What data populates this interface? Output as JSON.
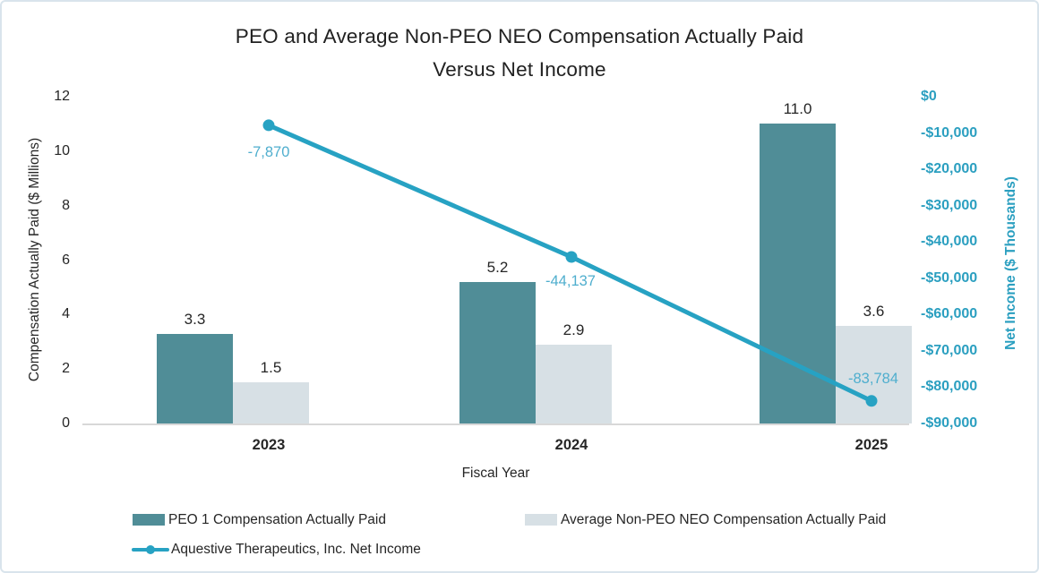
{
  "colors": {
    "peo_bar": "#508D97",
    "non_peo_bar": "#D7E0E5",
    "net_income_line": "#27A2C3",
    "net_income_label": "#4FAECE",
    "right_axis_text": "#2B9FC0",
    "text_dark": "#262626",
    "axis_line": "#D8D8D8",
    "frame_border": "#D9E4EC"
  },
  "chart_data": {
    "type": "combo-bar-line",
    "title_line1": "PEO and Average Non-PEO NEO Compensation Actually Paid",
    "title_line2": "Versus Net Income",
    "xlabel": "Fiscal Year",
    "categories": [
      "2023",
      "2024",
      "2025"
    ],
    "left_axis": {
      "label": "Compensation Actually Paid ($ Millions)",
      "min": 0,
      "max": 12,
      "tick_step": 2,
      "ticks": [
        {
          "label": "12",
          "value": 12
        },
        {
          "label": "10",
          "value": 10
        },
        {
          "label": "8",
          "value": 8
        },
        {
          "label": "6",
          "value": 6
        },
        {
          "label": "4",
          "value": 4
        },
        {
          "label": "2",
          "value": 2
        },
        {
          "label": "0",
          "value": 0
        }
      ]
    },
    "right_axis": {
      "label": "Net Income ($ Thousands)",
      "min": -90000,
      "max": 0,
      "tick_step": 10000,
      "ticks": [
        {
          "label": "$0",
          "value": 0
        },
        {
          "label": "-$10,000",
          "value": -10000
        },
        {
          "label": "-$20,000",
          "value": -20000
        },
        {
          "label": "-$30,000",
          "value": -30000
        },
        {
          "label": "-$40,000",
          "value": -40000
        },
        {
          "label": "-$50,000",
          "value": -50000
        },
        {
          "label": "-$60,000",
          "value": -60000
        },
        {
          "label": "-$70,000",
          "value": -70000
        },
        {
          "label": "-$80,000",
          "value": -80000
        },
        {
          "label": "-$90,000",
          "value": -90000
        }
      ]
    },
    "series": [
      {
        "name": "PEO 1 Compensation Actually Paid",
        "type": "bar",
        "axis": "left",
        "values": [
          3.3,
          5.2,
          11.0
        ],
        "labels": [
          "3.3",
          "5.2",
          "11.0"
        ]
      },
      {
        "name": "Average Non-PEO NEO Compensation Actually Paid",
        "type": "bar",
        "axis": "left",
        "values": [
          1.5,
          2.9,
          3.6
        ],
        "labels": [
          "1.5",
          "2.9",
          "3.6"
        ]
      },
      {
        "name": "Aquestive Therapeutics, Inc. Net Income",
        "type": "line",
        "axis": "right",
        "values": [
          -7870,
          -44137,
          -83784
        ],
        "labels": [
          "-7,870",
          "-44,137",
          "-83,784"
        ]
      }
    ],
    "legend_position": "bottom",
    "grid": false
  }
}
